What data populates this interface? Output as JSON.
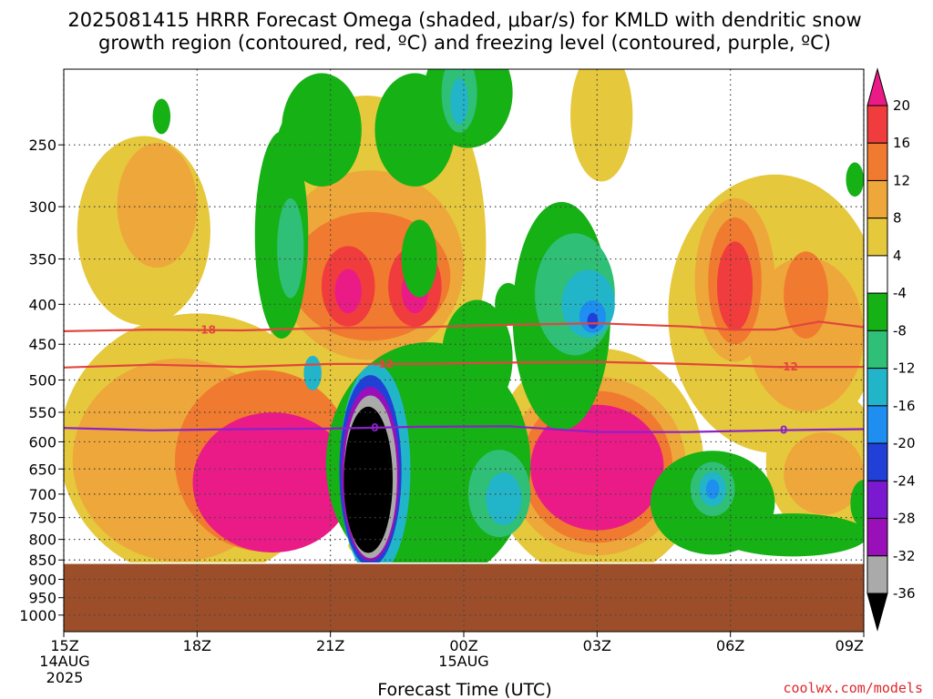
{
  "title_line1": "2025081415 HRRR Forecast Omega (shaded, μbar/s) for KMLD with dendritic snow",
  "title_line2": "growth region (contoured, red, ºC) and freezing level (contoured, purple, ºC)",
  "credit": "coolwx.com/models",
  "colors": {
    "credit": "#e0262b",
    "ground": "#9c4e2a",
    "dgz_contour": "#e2463e",
    "freezing_contour": "#8a22c8"
  },
  "chart_data": {
    "type": "heatmap",
    "title": "2025081415 HRRR Forecast Omega (shaded, μbar/s) for KMLD with dendritic snow growth region (contoured, red, ºC) and freezing level (contoured, purple, ºC)",
    "xlabel": "Forecast Time (UTC)",
    "ylabel": "",
    "x_range_hours": [
      0,
      18
    ],
    "y_scale": "log-pressure",
    "y_range_mb": [
      1050,
      200
    ],
    "grid": true,
    "x_ticks": [
      {
        "hour": 0,
        "label": "15Z",
        "sub1": "14AUG",
        "sub2": "2025"
      },
      {
        "hour": 3,
        "label": "18Z",
        "sub1": "",
        "sub2": ""
      },
      {
        "hour": 6,
        "label": "21Z",
        "sub1": "",
        "sub2": ""
      },
      {
        "hour": 9,
        "label": "00Z",
        "sub1": "15AUG",
        "sub2": ""
      },
      {
        "hour": 12,
        "label": "03Z",
        "sub1": "",
        "sub2": ""
      },
      {
        "hour": 15,
        "label": "06Z",
        "sub1": "",
        "sub2": ""
      },
      {
        "hour": 18,
        "label": "09Z",
        "sub1": "",
        "sub2": ""
      }
    ],
    "y_ticks": [
      250,
      300,
      350,
      400,
      450,
      500,
      550,
      600,
      650,
      700,
      750,
      800,
      850,
      900,
      950,
      1000
    ],
    "ground_top_mb": 860,
    "colorbar": {
      "levels": [
        20,
        16,
        12,
        8,
        4,
        -4,
        -8,
        -12,
        -16,
        -20,
        -24,
        -28,
        -32,
        -36
      ],
      "colors": [
        "#ea1b86",
        "#f03c3c",
        "#f07a2f",
        "#eea73a",
        "#e6c83c",
        "#ffffff",
        "#15b115",
        "#2fbf77",
        "#22b5c9",
        "#1e8ff0",
        "#2040d8",
        "#7a19d0",
        "#9a10b8",
        "#aaaaaa",
        "#000000"
      ]
    },
    "series": [
      {
        "name": "-18",
        "color": "#e2463e",
        "x": [
          0,
          2,
          4,
          6,
          8,
          10,
          12,
          14,
          15,
          16,
          17,
          18
        ],
        "y": [
          433,
          431,
          432,
          429,
          428,
          425,
          423,
          427,
          431,
          431,
          421,
          428
        ]
      },
      {
        "name": "-12",
        "color": "#e2463e",
        "x": [
          0,
          2,
          4,
          6,
          8,
          10,
          12,
          14,
          16,
          18
        ],
        "y": [
          482,
          478,
          481,
          477,
          477,
          475,
          474,
          477,
          481,
          481
        ]
      },
      {
        "name": "0",
        "color": "#8a22c8",
        "x": [
          0,
          2,
          4,
          6,
          8,
          10,
          12,
          14,
          16,
          18
        ],
        "y": [
          576,
          580,
          578,
          577,
          574,
          573,
          583,
          583,
          580,
          578
        ]
      }
    ],
    "blobs": [
      {
        "c": 4,
        "cx": 3.0,
        "cy": 620,
        "rx": 3.1,
        "ry": 240
      },
      {
        "c": 4,
        "cx": 1.8,
        "cy": 325,
        "rx": 1.5,
        "ry": 90
      },
      {
        "c": 4,
        "cx": 6.8,
        "cy": 360,
        "rx": 2.4,
        "ry": 170
      },
      {
        "c": 4,
        "cx": 8.0,
        "cy": 345,
        "rx": 1.5,
        "ry": 160
      },
      {
        "c": 4,
        "cx": 12.0,
        "cy": 650,
        "rx": 2.4,
        "ry": 220
      },
      {
        "c": 4,
        "cx": 16.0,
        "cy": 420,
        "rx": 2.4,
        "ry": 170
      },
      {
        "c": 4,
        "cx": 17.1,
        "cy": 640,
        "rx": 1.3,
        "ry": 140
      },
      {
        "c": 4,
        "cx": 12.1,
        "cy": 230,
        "rx": 0.7,
        "ry": 45
      },
      {
        "c": 4,
        "cx": 7.9,
        "cy": 815,
        "rx": 1.5,
        "ry": 40
      },
      {
        "c": 3,
        "cx": 2.1,
        "cy": 300,
        "rx": 0.9,
        "ry": 55
      },
      {
        "c": 3,
        "cx": 2.6,
        "cy": 640,
        "rx": 2.4,
        "ry": 190
      },
      {
        "c": 3,
        "cx": 6.9,
        "cy": 360,
        "rx": 2.1,
        "ry": 100
      },
      {
        "c": 3,
        "cx": 12.0,
        "cy": 650,
        "rx": 2.0,
        "ry": 170
      },
      {
        "c": 3,
        "cx": 15.1,
        "cy": 375,
        "rx": 0.9,
        "ry": 90
      },
      {
        "c": 3,
        "cx": 16.7,
        "cy": 440,
        "rx": 1.3,
        "ry": 100
      },
      {
        "c": 3,
        "cx": 17.1,
        "cy": 660,
        "rx": 0.9,
        "ry": 80
      },
      {
        "c": 2,
        "cx": 6.9,
        "cy": 370,
        "rx": 1.8,
        "ry": 70
      },
      {
        "c": 2,
        "cx": 4.5,
        "cy": 640,
        "rx": 2.0,
        "ry": 170
      },
      {
        "c": 2,
        "cx": 12.0,
        "cy": 650,
        "rx": 1.7,
        "ry": 145
      },
      {
        "c": 2,
        "cx": 15.1,
        "cy": 375,
        "rx": 0.6,
        "ry": 70
      },
      {
        "c": 2,
        "cx": 16.7,
        "cy": 390,
        "rx": 0.5,
        "ry": 50
      },
      {
        "c": 2,
        "cx": 8.1,
        "cy": 805,
        "rx": 0.3,
        "ry": 30
      },
      {
        "c": 1,
        "cx": 6.4,
        "cy": 380,
        "rx": 0.6,
        "ry": 45
      },
      {
        "c": 1,
        "cx": 7.9,
        "cy": 380,
        "rx": 0.6,
        "ry": 45
      },
      {
        "c": 1,
        "cx": 15.1,
        "cy": 380,
        "rx": 0.4,
        "ry": 50
      },
      {
        "c": 1,
        "cx": 8.1,
        "cy": 800,
        "rx": 0.15,
        "ry": 15
      },
      {
        "c": 0,
        "cx": 4.7,
        "cy": 680,
        "rx": 1.8,
        "ry": 140
      },
      {
        "c": 0,
        "cx": 12.0,
        "cy": 650,
        "rx": 1.5,
        "ry": 120
      },
      {
        "c": 0,
        "cx": 6.4,
        "cy": 385,
        "rx": 0.3,
        "ry": 25
      },
      {
        "c": 0,
        "cx": 7.9,
        "cy": 385,
        "rx": 0.3,
        "ry": 25
      },
      {
        "c": 6,
        "cx": 7.9,
        "cy": 240,
        "rx": 0.9,
        "ry": 40
      },
      {
        "c": 6,
        "cx": 5.1,
        "cy": 250,
        "rx": 0.3,
        "ry": 20
      },
      {
        "c": 6,
        "cx": 10.0,
        "cy": 400,
        "rx": 0.3,
        "ry": 25
      },
      {
        "c": 6,
        "cx": 5.8,
        "cy": 240,
        "rx": 0.9,
        "ry": 40
      },
      {
        "c": 6,
        "cx": 8.0,
        "cy": 350,
        "rx": 0.4,
        "ry": 40
      },
      {
        "c": 6,
        "cx": 9.1,
        "cy": 215,
        "rx": 1.0,
        "ry": 35
      },
      {
        "c": 6,
        "cx": 8.2,
        "cy": 650,
        "rx": 2.3,
        "ry": 230
      },
      {
        "c": 6,
        "cx": 9.3,
        "cy": 470,
        "rx": 0.8,
        "ry": 80
      },
      {
        "c": 6,
        "cx": 11.2,
        "cy": 420,
        "rx": 1.1,
        "ry": 140
      },
      {
        "c": 6,
        "cx": 14.6,
        "cy": 720,
        "rx": 1.4,
        "ry": 110
      },
      {
        "c": 6,
        "cx": 16.4,
        "cy": 790,
        "rx": 1.7,
        "ry": 50
      },
      {
        "c": 6,
        "cx": 4.9,
        "cy": 330,
        "rx": 0.6,
        "ry": 100
      },
      {
        "c": 6,
        "cx": 2.2,
        "cy": 230,
        "rx": 0.2,
        "ry": 12
      },
      {
        "c": 6,
        "cx": 17.8,
        "cy": 277,
        "rx": 0.2,
        "ry": 14
      },
      {
        "c": 6,
        "cx": 18.0,
        "cy": 720,
        "rx": 0.3,
        "ry": 50
      },
      {
        "c": 7,
        "cx": 11.5,
        "cy": 390,
        "rx": 0.9,
        "ry": 70
      },
      {
        "c": 7,
        "cx": 9.8,
        "cy": 700,
        "rx": 0.7,
        "ry": 90
      },
      {
        "c": 7,
        "cx": 14.6,
        "cy": 690,
        "rx": 0.5,
        "ry": 55
      },
      {
        "c": 7,
        "cx": 5.1,
        "cy": 340,
        "rx": 0.3,
        "ry": 50
      },
      {
        "c": 7,
        "cx": 8.9,
        "cy": 215,
        "rx": 0.4,
        "ry": 25
      },
      {
        "c": 8,
        "cx": 11.8,
        "cy": 400,
        "rx": 0.6,
        "ry": 40
      },
      {
        "c": 8,
        "cx": 9.9,
        "cy": 710,
        "rx": 0.4,
        "ry": 55
      },
      {
        "c": 8,
        "cx": 14.6,
        "cy": 690,
        "rx": 0.3,
        "ry": 35
      },
      {
        "c": 8,
        "cx": 8.9,
        "cy": 220,
        "rx": 0.2,
        "ry": 15
      },
      {
        "c": 8,
        "cx": 5.6,
        "cy": 490,
        "rx": 0.2,
        "ry": 25
      },
      {
        "c": 9,
        "cx": 11.9,
        "cy": 415,
        "rx": 0.3,
        "ry": 20
      },
      {
        "c": 9,
        "cx": 14.6,
        "cy": 690,
        "rx": 0.15,
        "ry": 20
      },
      {
        "c": 10,
        "cx": 11.9,
        "cy": 420,
        "rx": 0.12,
        "ry": 10
      },
      {
        "c": 8,
        "cx": 7.0,
        "cy": 660,
        "rx": 0.8,
        "ry": 205
      },
      {
        "c": 10,
        "cx": 6.9,
        "cy": 660,
        "rx": 0.7,
        "ry": 185
      },
      {
        "c": 12,
        "cx": 6.9,
        "cy": 665,
        "rx": 0.65,
        "ry": 170
      },
      {
        "c": 13,
        "cx": 6.9,
        "cy": 670,
        "rx": 0.6,
        "ry": 160
      },
      {
        "c": 14,
        "cx": 6.85,
        "cy": 675,
        "rx": 0.55,
        "ry": 145
      }
    ]
  }
}
